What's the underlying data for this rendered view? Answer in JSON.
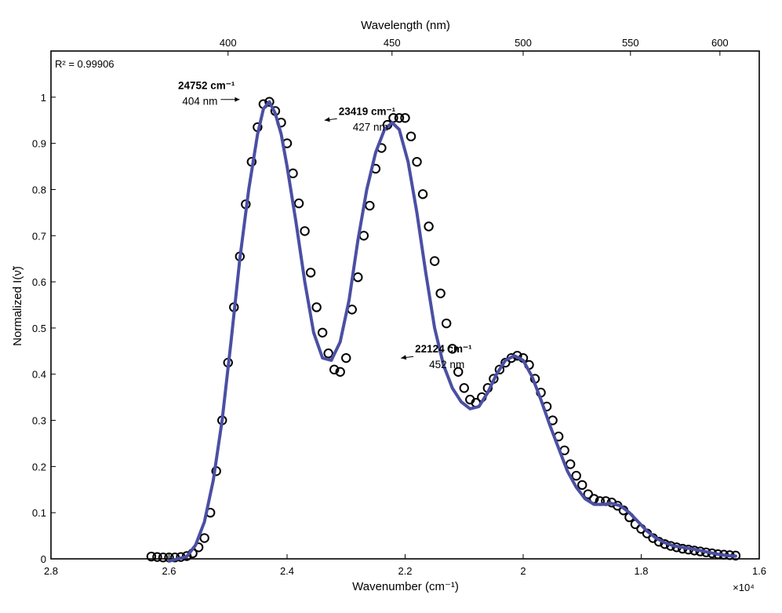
{
  "chart_data": {
    "type": "scatter",
    "xlabel": "Wavenumber (cm⁻¹)",
    "x_multiplier_label": "×10⁴",
    "ylabel": "Normalized I(ν̃)",
    "top_xlabel": "Wavelength (nm)",
    "xlim": [
      2.8,
      1.6
    ],
    "ylim": [
      0,
      1.1
    ],
    "x_ticks": [
      2.8,
      2.6,
      2.4,
      2.2,
      2.0,
      1.8,
      1.6
    ],
    "x_tick_labels": [
      "2.8",
      "2.6",
      "2.4",
      "2.2",
      "2",
      "1.8",
      "1.6"
    ],
    "y_ticks": [
      0,
      0.1,
      0.2,
      0.3,
      0.4,
      0.5,
      0.6,
      0.7,
      0.8,
      0.9,
      1.0
    ],
    "y_tick_labels": [
      "0",
      "0.1",
      "0.2",
      "0.3",
      "0.4",
      "0.5",
      "0.6",
      "0.7",
      "0.8",
      "0.9",
      "1"
    ],
    "top_ticks_nm": [
      400,
      450,
      500,
      550,
      600
    ],
    "top_tick_labels": [
      "400",
      "450",
      "500",
      "550",
      "600"
    ],
    "r_squared_label": "R² = 0.99906",
    "annotations": [
      {
        "bold": "24752 cm⁻¹",
        "sub": "404 nm",
        "x": 2.4752,
        "y": 0.99
      },
      {
        "bold": "23419 cm⁻¹",
        "sub": "427 nm",
        "x": 2.3419,
        "y": 0.955
      },
      {
        "bold": "22124 cm⁻¹",
        "sub": "452 nm",
        "x": 2.2124,
        "y": 0.44
      }
    ],
    "series": [
      {
        "kind": "markers",
        "color": "#000000",
        "points": [
          [
            2.63,
            0.005
          ],
          [
            2.62,
            0.004
          ],
          [
            2.61,
            0.003
          ],
          [
            2.6,
            0.003
          ],
          [
            2.59,
            0.003
          ],
          [
            2.58,
            0.004
          ],
          [
            2.57,
            0.006
          ],
          [
            2.56,
            0.012
          ],
          [
            2.55,
            0.025
          ],
          [
            2.54,
            0.045
          ],
          [
            2.53,
            0.1
          ],
          [
            2.52,
            0.19
          ],
          [
            2.51,
            0.3
          ],
          [
            2.5,
            0.425
          ],
          [
            2.49,
            0.545
          ],
          [
            2.48,
            0.655
          ],
          [
            2.47,
            0.768
          ],
          [
            2.46,
            0.86
          ],
          [
            2.45,
            0.935
          ],
          [
            2.44,
            0.985
          ],
          [
            2.43,
            0.99
          ],
          [
            2.42,
            0.97
          ],
          [
            2.41,
            0.945
          ],
          [
            2.4,
            0.9
          ],
          [
            2.39,
            0.835
          ],
          [
            2.38,
            0.77
          ],
          [
            2.37,
            0.71
          ],
          [
            2.36,
            0.62
          ],
          [
            2.35,
            0.545
          ],
          [
            2.34,
            0.49
          ],
          [
            2.33,
            0.445
          ],
          [
            2.32,
            0.41
          ],
          [
            2.31,
            0.405
          ],
          [
            2.3,
            0.435
          ],
          [
            2.29,
            0.54
          ],
          [
            2.28,
            0.61
          ],
          [
            2.27,
            0.7
          ],
          [
            2.26,
            0.765
          ],
          [
            2.25,
            0.845
          ],
          [
            2.24,
            0.89
          ],
          [
            2.23,
            0.94
          ],
          [
            2.22,
            0.955
          ],
          [
            2.21,
            0.955
          ],
          [
            2.2,
            0.955
          ],
          [
            2.19,
            0.915
          ],
          [
            2.18,
            0.86
          ],
          [
            2.17,
            0.79
          ],
          [
            2.16,
            0.72
          ],
          [
            2.15,
            0.645
          ],
          [
            2.14,
            0.575
          ],
          [
            2.13,
            0.51
          ],
          [
            2.12,
            0.455
          ],
          [
            2.11,
            0.405
          ],
          [
            2.1,
            0.37
          ],
          [
            2.09,
            0.345
          ],
          [
            2.08,
            0.338
          ],
          [
            2.07,
            0.35
          ],
          [
            2.06,
            0.37
          ],
          [
            2.05,
            0.39
          ],
          [
            2.04,
            0.41
          ],
          [
            2.03,
            0.425
          ],
          [
            2.02,
            0.435
          ],
          [
            2.01,
            0.44
          ],
          [
            2.0,
            0.435
          ],
          [
            1.99,
            0.42
          ],
          [
            1.98,
            0.39
          ],
          [
            1.97,
            0.36
          ],
          [
            1.96,
            0.33
          ],
          [
            1.95,
            0.3
          ],
          [
            1.94,
            0.265
          ],
          [
            1.93,
            0.235
          ],
          [
            1.92,
            0.205
          ],
          [
            1.91,
            0.18
          ],
          [
            1.9,
            0.16
          ],
          [
            1.89,
            0.14
          ],
          [
            1.88,
            0.13
          ],
          [
            1.87,
            0.125
          ],
          [
            1.86,
            0.125
          ],
          [
            1.85,
            0.122
          ],
          [
            1.84,
            0.115
          ],
          [
            1.83,
            0.105
          ],
          [
            1.82,
            0.09
          ],
          [
            1.81,
            0.075
          ],
          [
            1.8,
            0.065
          ],
          [
            1.79,
            0.055
          ],
          [
            1.78,
            0.045
          ],
          [
            1.77,
            0.037
          ],
          [
            1.76,
            0.032
          ],
          [
            1.75,
            0.028
          ],
          [
            1.74,
            0.025
          ],
          [
            1.73,
            0.022
          ],
          [
            1.72,
            0.02
          ],
          [
            1.71,
            0.018
          ],
          [
            1.7,
            0.016
          ],
          [
            1.69,
            0.014
          ],
          [
            1.68,
            0.012
          ],
          [
            1.67,
            0.01
          ],
          [
            1.66,
            0.009
          ],
          [
            1.65,
            0.008
          ],
          [
            1.64,
            0.007
          ]
        ]
      },
      {
        "kind": "fit-line",
        "color": "#4b4fa3",
        "points": [
          [
            2.6,
            -0.005
          ],
          [
            2.57,
            0.005
          ],
          [
            2.555,
            0.03
          ],
          [
            2.54,
            0.08
          ],
          [
            2.525,
            0.17
          ],
          [
            2.51,
            0.3
          ],
          [
            2.495,
            0.47
          ],
          [
            2.48,
            0.65
          ],
          [
            2.465,
            0.8
          ],
          [
            2.45,
            0.92
          ],
          [
            2.44,
            0.975
          ],
          [
            2.43,
            0.99
          ],
          [
            2.42,
            0.965
          ],
          [
            2.41,
            0.92
          ],
          [
            2.4,
            0.85
          ],
          [
            2.385,
            0.73
          ],
          [
            2.37,
            0.6
          ],
          [
            2.355,
            0.49
          ],
          [
            2.34,
            0.435
          ],
          [
            2.325,
            0.43
          ],
          [
            2.31,
            0.47
          ],
          [
            2.295,
            0.56
          ],
          [
            2.28,
            0.69
          ],
          [
            2.265,
            0.8
          ],
          [
            2.25,
            0.88
          ],
          [
            2.235,
            0.93
          ],
          [
            2.222,
            0.945
          ],
          [
            2.21,
            0.93
          ],
          [
            2.195,
            0.86
          ],
          [
            2.18,
            0.75
          ],
          [
            2.165,
            0.62
          ],
          [
            2.15,
            0.5
          ],
          [
            2.135,
            0.42
          ],
          [
            2.12,
            0.37
          ],
          [
            2.105,
            0.34
          ],
          [
            2.09,
            0.325
          ],
          [
            2.075,
            0.33
          ],
          [
            2.06,
            0.36
          ],
          [
            2.045,
            0.4
          ],
          [
            2.03,
            0.43
          ],
          [
            2.015,
            0.44
          ],
          [
            2.0,
            0.43
          ],
          [
            1.985,
            0.395
          ],
          [
            1.97,
            0.345
          ],
          [
            1.955,
            0.29
          ],
          [
            1.94,
            0.24
          ],
          [
            1.925,
            0.19
          ],
          [
            1.91,
            0.155
          ],
          [
            1.895,
            0.13
          ],
          [
            1.88,
            0.118
          ],
          [
            1.865,
            0.118
          ],
          [
            1.85,
            0.12
          ],
          [
            1.835,
            0.115
          ],
          [
            1.82,
            0.1
          ],
          [
            1.805,
            0.08
          ],
          [
            1.79,
            0.06
          ],
          [
            1.775,
            0.045
          ],
          [
            1.76,
            0.035
          ],
          [
            1.745,
            0.028
          ],
          [
            1.73,
            0.025
          ],
          [
            1.715,
            0.022
          ],
          [
            1.7,
            0.018
          ],
          [
            1.685,
            0.014
          ],
          [
            1.67,
            0.01
          ],
          [
            1.655,
            0.007
          ],
          [
            1.64,
            0.006
          ]
        ]
      }
    ]
  }
}
